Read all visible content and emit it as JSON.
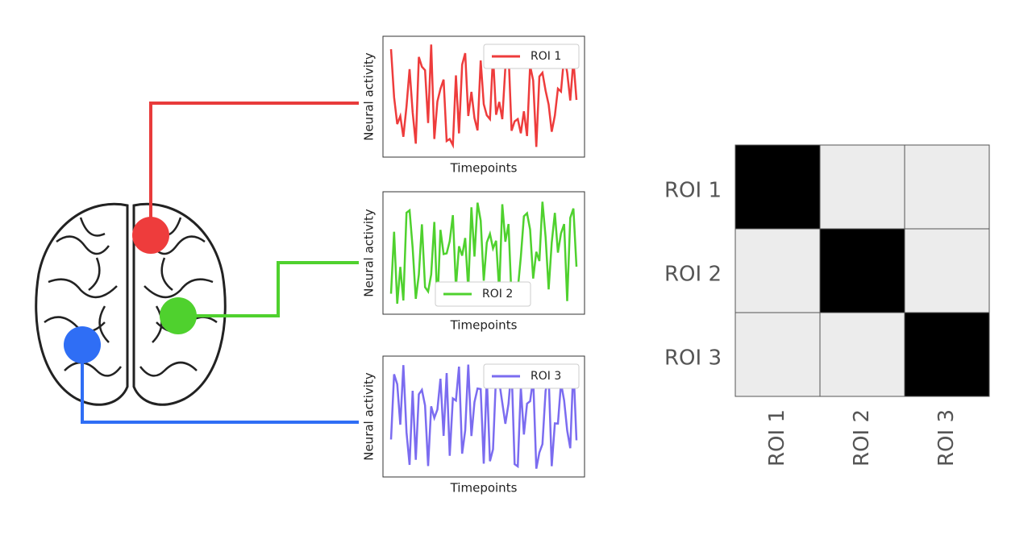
{
  "plots": [
    {
      "legend": "ROI 1",
      "ylabel": "Neural activity",
      "xlabel": "Timepoints"
    },
    {
      "legend": "ROI 2",
      "ylabel": "Neural activity",
      "xlabel": "Timepoints"
    },
    {
      "legend": "ROI 3",
      "ylabel": "Neural activity",
      "xlabel": "Timepoints"
    }
  ],
  "matrix": {
    "row_labels": [
      "ROI 1",
      "ROI 2",
      "ROI 3"
    ],
    "col_labels": [
      "ROI 1",
      "ROI 2",
      "ROI 3"
    ]
  }
}
